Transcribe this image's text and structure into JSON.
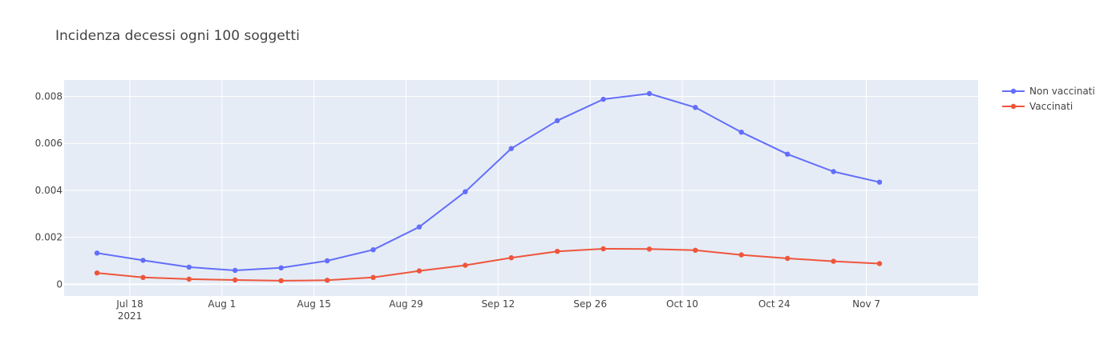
{
  "chart_data": {
    "type": "line",
    "title": "Incidenza decessi ogni 100 soggetti",
    "xlabel": "",
    "ylabel": "",
    "x": [
      "2021-07-13",
      "2021-07-20",
      "2021-07-27",
      "2021-08-03",
      "2021-08-10",
      "2021-08-17",
      "2021-08-24",
      "2021-08-31",
      "2021-09-07",
      "2021-09-14",
      "2021-09-21",
      "2021-09-28",
      "2021-10-05",
      "2021-10-12",
      "2021-10-19",
      "2021-10-26",
      "2021-11-02",
      "2021-11-09"
    ],
    "xlim": [
      "2021-07-08",
      "2021-11-24"
    ],
    "ylim": [
      -0.0005,
      0.0087
    ],
    "x_ticks": [
      {
        "date": "2021-07-18",
        "label": "Jul 18",
        "sublabel": "2021"
      },
      {
        "date": "2021-08-01",
        "label": "Aug 1"
      },
      {
        "date": "2021-08-15",
        "label": "Aug 15"
      },
      {
        "date": "2021-08-29",
        "label": "Aug 29"
      },
      {
        "date": "2021-09-12",
        "label": "Sep 12"
      },
      {
        "date": "2021-09-26",
        "label": "Sep 26"
      },
      {
        "date": "2021-10-10",
        "label": "Oct 10"
      },
      {
        "date": "2021-10-24",
        "label": "Oct 24"
      },
      {
        "date": "2021-11-07",
        "label": "Nov 7"
      }
    ],
    "y_ticks": [
      {
        "value": 0,
        "label": "0"
      },
      {
        "value": 0.002,
        "label": "0.002"
      },
      {
        "value": 0.004,
        "label": "0.004"
      },
      {
        "value": 0.006,
        "label": "0.006"
      },
      {
        "value": 0.008,
        "label": "0.008"
      }
    ],
    "grid": true,
    "legend_position": "top-right",
    "series": [
      {
        "name": "Non vaccinati",
        "color": "#636efa",
        "values": [
          0.00133,
          0.00102,
          0.00073,
          0.00059,
          0.0007,
          0.001,
          0.00147,
          0.00244,
          0.00394,
          0.00578,
          0.00697,
          0.00788,
          0.00812,
          0.00753,
          0.00648,
          0.00554,
          0.0048,
          0.00435
        ]
      },
      {
        "name": "Vaccinati",
        "color": "#ef553b",
        "values": [
          0.00048,
          0.00029,
          0.00022,
          0.00018,
          0.00015,
          0.00017,
          0.00029,
          0.00057,
          0.00081,
          0.00113,
          0.0014,
          0.00151,
          0.0015,
          0.00145,
          0.00125,
          0.0011,
          0.00098,
          0.00088
        ]
      }
    ],
    "plot_bgcolor": "#e5ecf6",
    "grid_color": "#ffffff"
  }
}
